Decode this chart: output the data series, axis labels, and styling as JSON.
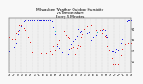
{
  "title": "Milwaukee Weather Outdoor Humidity\nvs Temperature\nEvery 5 Minutes",
  "title_fontsize": 3.2,
  "background_color": "#f8f8f8",
  "plot_bg_color": "#f0f0f0",
  "grid_color": "#bbbbbb",
  "blue_color": "#0000dd",
  "red_color": "#dd0000",
  "cyan_color": "#00cccc",
  "xlim": [
    0,
    1
  ],
  "ylim": [
    0,
    1
  ],
  "y_ticks_right": [
    0.2,
    0.4,
    0.6,
    0.8
  ],
  "y_tick_labels": [
    "20",
    "40",
    "60",
    "80"
  ],
  "num_points": 250,
  "seed": 7,
  "dot_size": 0.4,
  "num_gridlines": 22,
  "num_xticks": 30
}
